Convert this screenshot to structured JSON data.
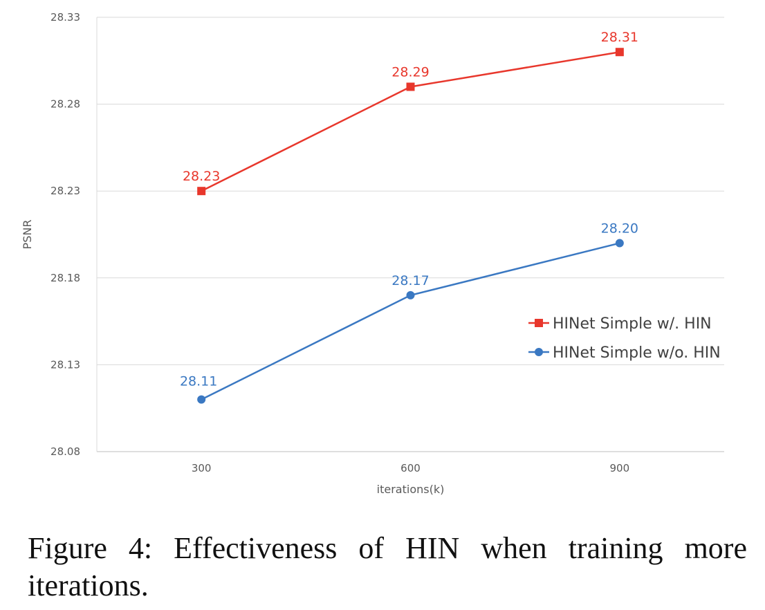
{
  "chart_data": {
    "type": "line",
    "title": "",
    "xlabel": "iterations(k)",
    "ylabel": "PSNR",
    "categories": [
      "300",
      "600",
      "900"
    ],
    "ylim": [
      28.08,
      28.33
    ],
    "yticks": [
      "28.08",
      "28.13",
      "28.18",
      "28.23",
      "28.28",
      "28.33"
    ],
    "grid": true,
    "legend_position": "right",
    "series": [
      {
        "name": "HINet Simple w/. HIN",
        "values": [
          28.23,
          28.29,
          28.31
        ],
        "labels": [
          "28.23",
          "28.29",
          "28.31"
        ],
        "color": "#e8372c",
        "marker": "square"
      },
      {
        "name": "HINet Simple w/o. HIN",
        "values": [
          28.11,
          28.17,
          28.2
        ],
        "labels": [
          "28.11",
          "28.17",
          "28.20"
        ],
        "color": "#3a78c2",
        "marker": "circle"
      }
    ]
  },
  "caption": "Figure 4: Effectiveness of HIN when training more iterations."
}
